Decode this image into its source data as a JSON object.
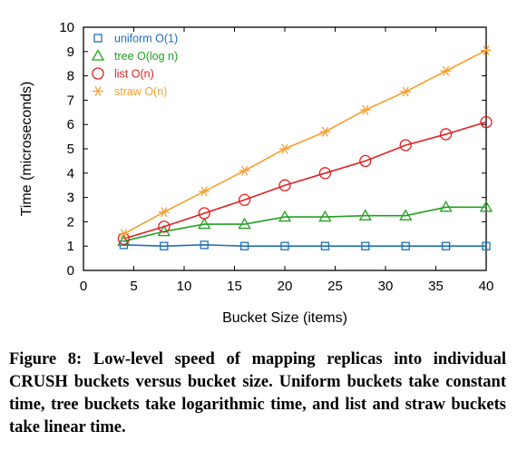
{
  "chart_data": {
    "type": "line",
    "x": [
      4,
      8,
      12,
      16,
      20,
      24,
      28,
      32,
      36,
      40
    ],
    "xlabel": "Bucket Size (items)",
    "ylabel": "Time (microseconds)",
    "xlim": [
      0,
      40
    ],
    "ylim": [
      0,
      10
    ],
    "xticks": [
      "0",
      "5",
      "10",
      "15",
      "20",
      "25",
      "30",
      "35",
      "40"
    ],
    "yticks": [
      "0",
      "1",
      "2",
      "3",
      "4",
      "5",
      "6",
      "7",
      "8",
      "9",
      "10"
    ],
    "grid": false,
    "legend_position": "top-left",
    "series": [
      {
        "name": "uniform O(1)",
        "color": "#1f6fb8",
        "marker": "square",
        "values": [
          1.05,
          1.0,
          1.05,
          1.0,
          1.0,
          1.0,
          1.0,
          1.0,
          1.0,
          1.0
        ]
      },
      {
        "name": "tree O(log n)",
        "color": "#22a022",
        "marker": "triangle",
        "values": [
          1.2,
          1.6,
          1.9,
          1.9,
          2.2,
          2.2,
          2.25,
          2.25,
          2.6,
          2.6
        ]
      },
      {
        "name": "list O(n)",
        "color": "#e02020",
        "marker": "circle",
        "values": [
          1.3,
          1.8,
          2.35,
          2.9,
          3.5,
          4.0,
          4.5,
          5.15,
          5.6,
          6.1
        ]
      },
      {
        "name": "straw O(n)",
        "color": "#f5a030",
        "marker": "star",
        "values": [
          1.5,
          2.4,
          3.25,
          4.1,
          5.0,
          5.7,
          6.6,
          7.35,
          8.2,
          9.05
        ]
      }
    ]
  },
  "caption": "Figure 8: Low-level speed of mapping replicas into individual CRUSH buckets versus bucket size. Uniform buckets take constant time, tree buckets take logarithmic time, and list and straw buckets take linear time."
}
